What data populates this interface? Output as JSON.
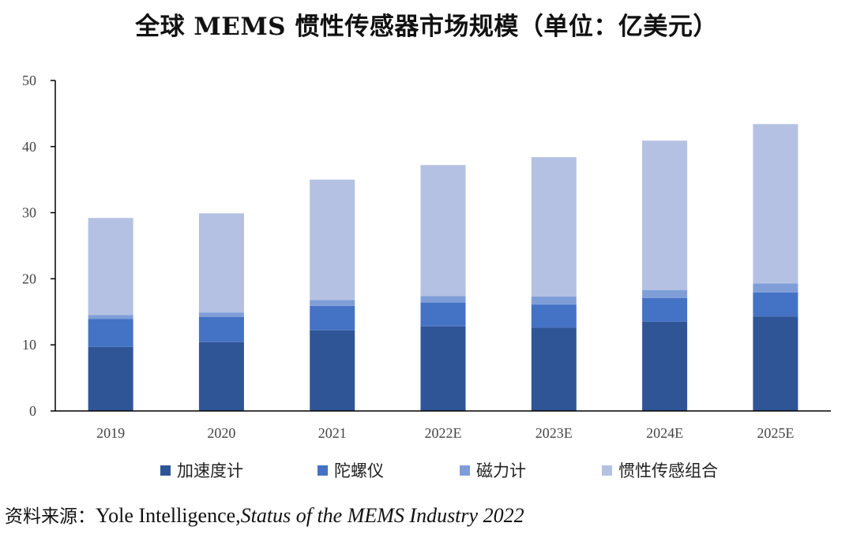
{
  "chart_data": {
    "type": "bar",
    "stacked": true,
    "title": "全球 MEMS 惯性传感器市场规模（单位：亿美元）",
    "xlabel": "",
    "ylabel": "",
    "ylim": [
      0,
      50
    ],
    "yticks": [
      0,
      10,
      20,
      30,
      40,
      50
    ],
    "categories": [
      "2019",
      "2020",
      "2021",
      "2022E",
      "2023E",
      "2024E",
      "2025E"
    ],
    "series": [
      {
        "name": "加速度计",
        "color": "#2F5597",
        "values": [
          9.7,
          10.4,
          12.2,
          12.8,
          12.6,
          13.5,
          14.3
        ]
      },
      {
        "name": "陀螺仪",
        "color": "#4472C4",
        "values": [
          4.2,
          3.8,
          3.7,
          3.6,
          3.5,
          3.6,
          3.6
        ]
      },
      {
        "name": "磁力计",
        "color": "#7F9ED8",
        "values": [
          0.6,
          0.7,
          0.9,
          1.0,
          1.2,
          1.2,
          1.4
        ]
      },
      {
        "name": "惯性传感组合",
        "color": "#B4C1E2",
        "values": [
          14.7,
          15.0,
          18.2,
          19.8,
          21.1,
          22.6,
          24.1
        ]
      }
    ],
    "legend_position": "bottom"
  },
  "source": {
    "prefix": "资料来源：",
    "publisher": "Yole Intelligence,",
    "publication": "Status of the MEMS Industry 2022"
  }
}
